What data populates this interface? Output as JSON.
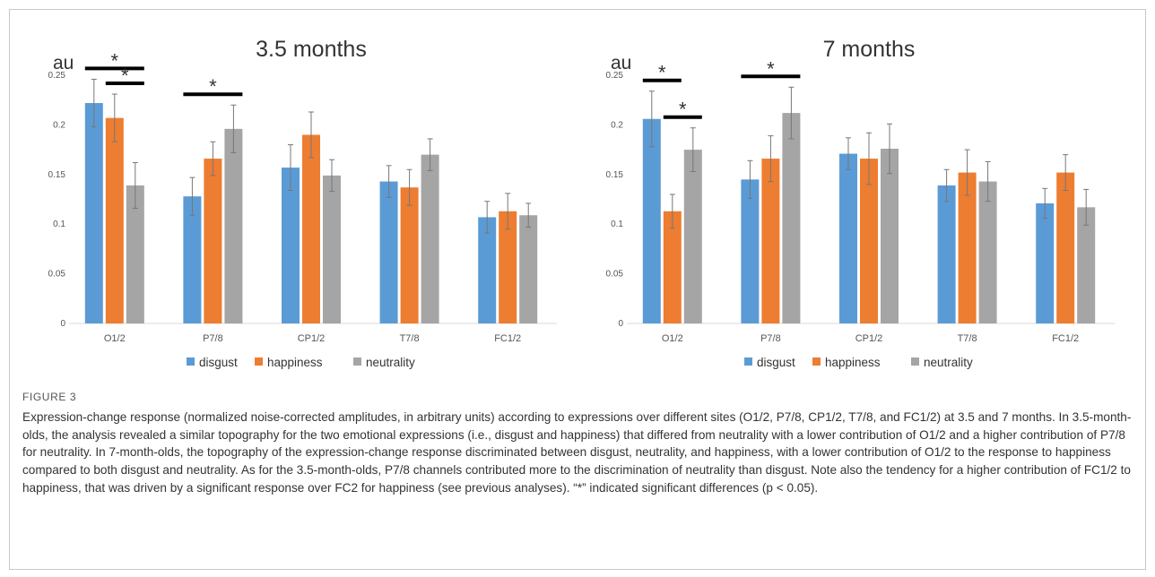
{
  "figure": {
    "label": "FIGURE 3",
    "caption": "Expression-change response (normalized noise-corrected amplitudes, in arbitrary units) according to expressions over different sites (O1/2, P7/8, CP1/2, T7/8, and FC1/2) at 3.5 and 7 months. In 3.5-month-olds, the analysis revealed a similar topography for the two emotional expressions (i.e., disgust and happiness) that differed from neutrality with a lower contribution of O1/2 and a higher contribution of P7/8 for neutrality. In 7-month-olds, the topography of the expression-change response discriminated between disgust, neutrality, and happiness, with a lower contribution of O1/2 to the response to happiness compared to both disgust and neutrality. As for the 3.5-month-olds, P7/8 channels contributed more to the discrimination of neutrality than disgust. Note also the tendency for a higher contribution of FC1/2 to happiness, that was driven by a significant response over FC2 for happiness (see previous analyses). “*” indicated significant differences (p < 0.05)."
  },
  "colors": {
    "disgust": "#5b9bd5",
    "happiness": "#ed7d31",
    "neutrality": "#a5a5a5",
    "axis": "#d9d9d9",
    "errorbar": "#777777",
    "sig": "#000000"
  },
  "chart_data": [
    {
      "type": "bar",
      "title": "3.5 months",
      "ylabel": "au",
      "ylim": [
        0,
        0.25
      ],
      "yticks": [
        "0",
        "0.05",
        "0.1",
        "0.15",
        "0.2",
        "0.25"
      ],
      "categories": [
        "O1/2",
        "P7/8",
        "CP1/2",
        "T7/8",
        "FC1/2"
      ],
      "series": [
        {
          "name": "disgust",
          "values": [
            0.222,
            0.128,
            0.157,
            0.143,
            0.107
          ],
          "errors": [
            0.024,
            0.019,
            0.023,
            0.016,
            0.016
          ]
        },
        {
          "name": "happiness",
          "values": [
            0.207,
            0.166,
            0.19,
            0.137,
            0.113
          ],
          "errors": [
            0.024,
            0.017,
            0.023,
            0.018,
            0.018
          ]
        },
        {
          "name": "neutrality",
          "values": [
            0.139,
            0.196,
            0.149,
            0.17,
            0.109
          ],
          "errors": [
            0.023,
            0.024,
            0.016,
            0.016,
            0.012
          ]
        }
      ],
      "significance": [
        {
          "label": "*",
          "category": "O1/2",
          "from": "disgust",
          "to": "neutrality"
        },
        {
          "label": "*",
          "category": "O1/2",
          "from": "happiness",
          "to": "neutrality"
        },
        {
          "label": "*",
          "category": "P7/8",
          "from": "disgust",
          "to": "neutrality"
        }
      ],
      "legend_position": "bottom"
    },
    {
      "type": "bar",
      "title": "7 months",
      "ylabel": "au",
      "ylim": [
        0,
        0.25
      ],
      "yticks": [
        "0",
        "0.05",
        "0.1",
        "0.15",
        "0.2",
        "0.25"
      ],
      "categories": [
        "O1/2",
        "P7/8",
        "CP1/2",
        "T7/8",
        "FC1/2"
      ],
      "series": [
        {
          "name": "disgust",
          "values": [
            0.206,
            0.145,
            0.171,
            0.139,
            0.121
          ],
          "errors": [
            0.028,
            0.019,
            0.016,
            0.016,
            0.015
          ]
        },
        {
          "name": "happiness",
          "values": [
            0.113,
            0.166,
            0.166,
            0.152,
            0.152
          ],
          "errors": [
            0.017,
            0.023,
            0.026,
            0.023,
            0.018
          ]
        },
        {
          "name": "neutrality",
          "values": [
            0.175,
            0.212,
            0.176,
            0.143,
            0.117
          ],
          "errors": [
            0.022,
            0.026,
            0.025,
            0.02,
            0.018
          ]
        }
      ],
      "significance": [
        {
          "label": "*",
          "category": "O1/2",
          "from": "disgust",
          "to": "happiness"
        },
        {
          "label": "*",
          "category": "O1/2",
          "from": "happiness",
          "to": "neutrality"
        },
        {
          "label": "*",
          "category": "P7/8",
          "from": "disgust",
          "to": "neutrality"
        }
      ],
      "legend_position": "bottom"
    }
  ]
}
